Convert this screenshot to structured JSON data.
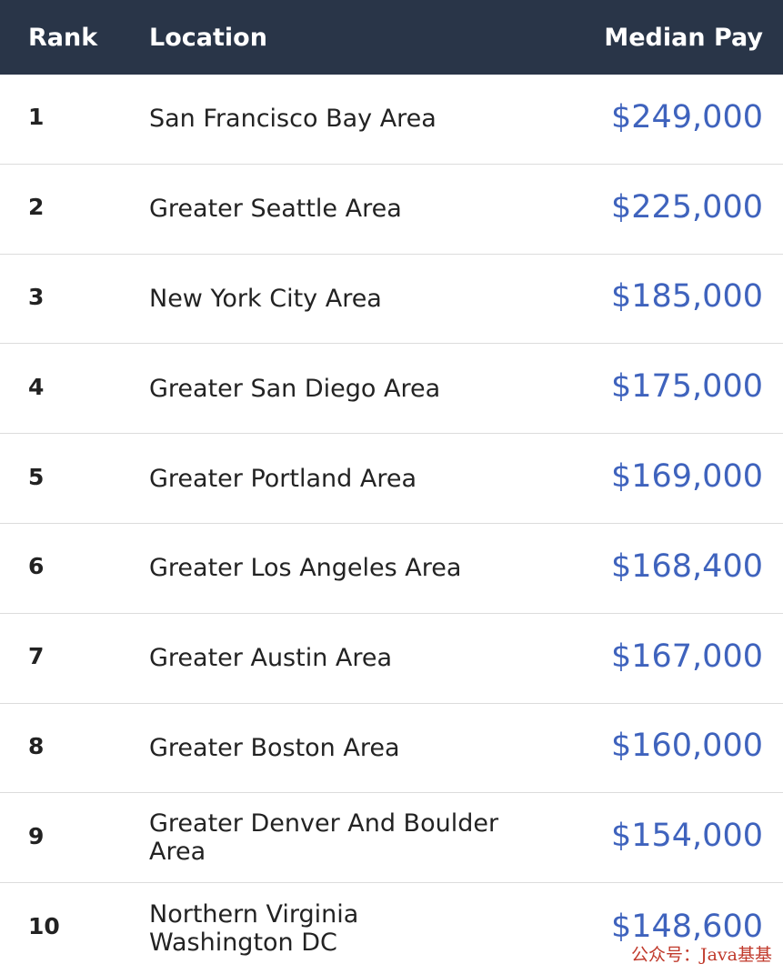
{
  "table": {
    "headers": {
      "rank": "Rank",
      "location": "Location",
      "pay": "Median Pay"
    },
    "rows": [
      {
        "rank": "1",
        "location": "San Francisco Bay Area",
        "pay": "$249,000"
      },
      {
        "rank": "2",
        "location": "Greater Seattle Area",
        "pay": "$225,000"
      },
      {
        "rank": "3",
        "location": "New York City Area",
        "pay": "$185,000"
      },
      {
        "rank": "4",
        "location": "Greater San Diego Area",
        "pay": "$175,000"
      },
      {
        "rank": "5",
        "location": "Greater Portland Area",
        "pay": "$169,000"
      },
      {
        "rank": "6",
        "location": "Greater Los Angeles Area",
        "pay": "$168,400"
      },
      {
        "rank": "7",
        "location": "Greater Austin Area",
        "pay": "$167,000"
      },
      {
        "rank": "8",
        "location": "Greater Boston Area",
        "pay": "$160,000"
      },
      {
        "rank": "9",
        "location": "Greater Denver And Boulder Area",
        "pay": "$154,000"
      },
      {
        "rank": "10",
        "location": "Northern Virginia Washington DC",
        "pay": "$148,600"
      }
    ]
  },
  "watermark": "公众号：Java基基",
  "colors": {
    "header_bg": "#293548",
    "pay_text": "#3f63bd"
  }
}
